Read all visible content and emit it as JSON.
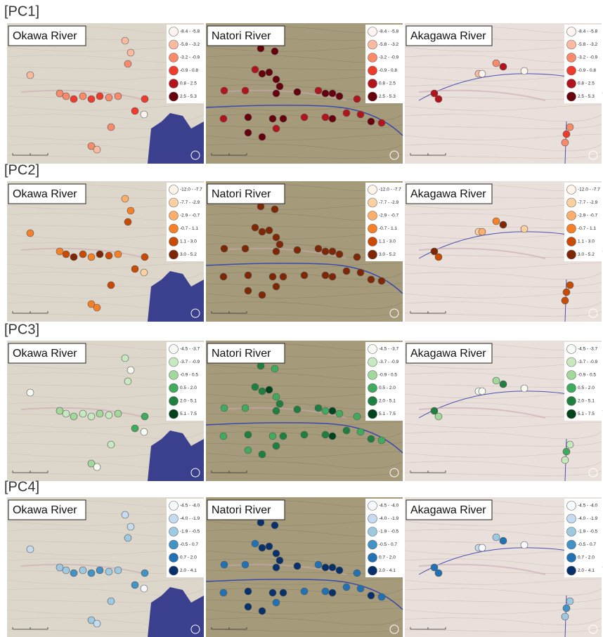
{
  "rows": [
    {
      "label": "[PC1]",
      "maps": [
        "Okawa River",
        "Natori River",
        "Akagawa River"
      ],
      "legend": [
        "-8.4 - -5.8",
        "-5.8 - -3.2",
        "-3.2 - -0.9",
        "-0.9 - 0.8",
        "0.8 - 2.5",
        "2.5 - 5.3"
      ],
      "colors": [
        "#fff5f0",
        "#fcbba1",
        "#fb8a6a",
        "#ef3b2c",
        "#b3141b",
        "#67000d"
      ]
    },
    {
      "label": "[PC2]",
      "maps": [
        "Okawa River",
        "Natori River",
        "Akagawa River"
      ],
      "legend": [
        "-12.0 - -7.7",
        "-7.7 - -2.9",
        "-2.9 - -0.7",
        "-0.7 - 1.1",
        "1.1 - 3.0",
        "3.0 - 5.2"
      ],
      "colors": [
        "#fff5eb",
        "#fdd0a2",
        "#fdae6b",
        "#f68026",
        "#c94a02",
        "#7f2704"
      ]
    },
    {
      "label": "[PC3]",
      "maps": [
        "Okawa River",
        "Natori River",
        "Akagawa River"
      ],
      "legend": [
        "-4.5 - -3.7",
        "-3.7 - -0.9",
        "-0.9 - 0.5",
        "0.5 - 2.0",
        "2.0 - 5.1",
        "5.1 - 7.5"
      ],
      "colors": [
        "#f7fcf5",
        "#c7e9c0",
        "#a1d99b",
        "#41ab5d",
        "#1f7f3f",
        "#00441b"
      ]
    },
    {
      "label": "[PC4]",
      "maps": [
        "Okawa River",
        "Natori River",
        "Akagawa River"
      ],
      "legend": [
        "-4.5 - -4.0",
        "-4.0 - -1.9",
        "-1.9 - -0.5",
        "-0.5 - 0.7",
        "0.7 - 2.0",
        "2.0 - 4.1"
      ],
      "colors": [
        "#f7fbff",
        "#c6dbef",
        "#9ecae1",
        "#4292c6",
        "#2171b5",
        "#08306b"
      ]
    }
  ]
}
